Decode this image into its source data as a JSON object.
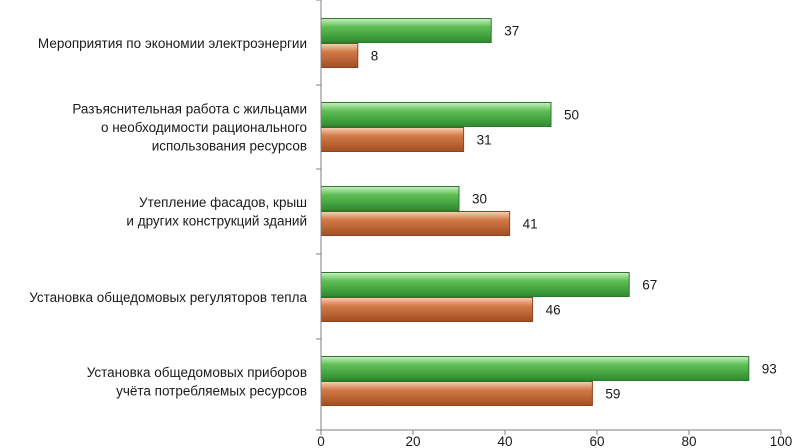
{
  "chart_data": {
    "type": "bar",
    "orientation": "horizontal",
    "categories": [
      [
        "Мероприятия по экономии электроэнергии"
      ],
      [
        "Разъяснительная работа с жильцами",
        "о необходимости рационального",
        "использования  ресурсов"
      ],
      [
        "Утепление фасадов, крыш",
        "и других конструкций зданий"
      ],
      [
        "Установка общедомовых регуляторов тепла"
      ],
      [
        "Установка общедомовых приборов",
        "учёта потребляемых ресурсов"
      ]
    ],
    "series": [
      {
        "color": "#3fa83f",
        "values": [
          37,
          50,
          30,
          67,
          93
        ]
      },
      {
        "color": "#c8683a",
        "values": [
          8,
          31,
          41,
          46,
          59
        ]
      }
    ],
    "xlim": [
      0,
      100
    ],
    "xticks": [
      0,
      20,
      40,
      60,
      80,
      100
    ],
    "grid": false,
    "legend": "none"
  }
}
